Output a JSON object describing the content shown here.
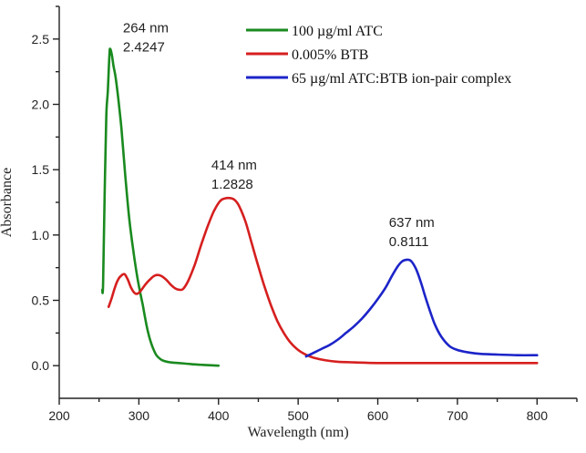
{
  "chart_data": {
    "type": "line",
    "title": "",
    "xlabel": "Wavelength (nm)",
    "ylabel": "Absorbance",
    "xlim": [
      200,
      850
    ],
    "ylim": [
      -0.25,
      2.75
    ],
    "x_ticks": [
      200,
      300,
      400,
      500,
      600,
      700,
      800
    ],
    "x_tick_labels": [
      "200",
      "300",
      "400",
      "500",
      "600",
      "700",
      "800"
    ],
    "x_minor_step": 50,
    "y_ticks": [
      0.0,
      0.5,
      1.0,
      1.5,
      2.0,
      2.5
    ],
    "y_tick_labels": [
      "0.0",
      "0.5",
      "1.0",
      "1.5",
      "2.0",
      "2.5"
    ],
    "y_minor_step": 0.25,
    "grid": false,
    "legend_position": "top-right",
    "series": [
      {
        "name": "100 µg/ml ATC",
        "color": "#1a8a1f",
        "x": [
          254,
          255,
          257,
          259,
          261,
          263,
          264,
          266,
          268,
          271,
          274,
          278,
          283,
          288,
          293,
          298,
          302,
          305,
          308,
          311,
          314,
          318,
          322,
          327,
          332,
          340,
          350,
          365,
          380,
          400
        ],
        "y": [
          0.58,
          0.62,
          1.3,
          1.9,
          2.1,
          2.38,
          2.4247,
          2.38,
          2.3,
          2.2,
          2.05,
          1.82,
          1.45,
          1.12,
          0.88,
          0.68,
          0.55,
          0.46,
          0.36,
          0.27,
          0.2,
          0.13,
          0.08,
          0.05,
          0.035,
          0.025,
          0.02,
          0.012,
          0.006,
          0.0
        ]
      },
      {
        "name": "0.005% BTB",
        "color": "#d61f1f",
        "x": [
          262,
          266,
          270,
          274,
          278,
          282,
          286,
          290,
          294,
          298,
          302,
          308,
          314,
          320,
          327,
          334,
          340,
          346,
          352,
          356,
          362,
          370,
          378,
          386,
          394,
          402,
          408,
          414,
          420,
          426,
          434,
          442,
          450,
          458,
          466,
          474,
          482,
          490,
          500,
          511,
          520,
          535,
          550,
          570,
          600,
          650,
          700,
          750,
          800
        ],
        "y": [
          0.45,
          0.52,
          0.6,
          0.66,
          0.69,
          0.7,
          0.66,
          0.6,
          0.56,
          0.55,
          0.57,
          0.62,
          0.66,
          0.69,
          0.69,
          0.66,
          0.62,
          0.59,
          0.58,
          0.59,
          0.65,
          0.77,
          0.92,
          1.06,
          1.18,
          1.26,
          1.28,
          1.2828,
          1.27,
          1.22,
          1.1,
          0.93,
          0.76,
          0.6,
          0.46,
          0.34,
          0.25,
          0.18,
          0.12,
          0.08,
          0.06,
          0.04,
          0.03,
          0.025,
          0.02,
          0.02,
          0.02,
          0.02,
          0.02
        ]
      },
      {
        "name": "65 µg/ml ATC:BTB ion-pair complex",
        "color": "#1c24c8",
        "x": [
          510,
          520,
          530,
          540,
          550,
          560,
          570,
          580,
          590,
          600,
          610,
          618,
          625,
          631,
          637,
          642,
          648,
          654,
          660,
          666,
          672,
          680,
          690,
          700,
          715,
          730,
          750,
          775,
          800
        ],
        "y": [
          0.07,
          0.1,
          0.13,
          0.16,
          0.2,
          0.25,
          0.3,
          0.36,
          0.43,
          0.51,
          0.6,
          0.69,
          0.76,
          0.8,
          0.8111,
          0.8,
          0.74,
          0.64,
          0.52,
          0.41,
          0.31,
          0.22,
          0.15,
          0.12,
          0.1,
          0.09,
          0.085,
          0.08,
          0.08
        ]
      }
    ],
    "annotations": [
      {
        "line1": "264 nm",
        "line2": "2.4247",
        "x": 264,
        "y": 2.4247,
        "anchor_x": 280,
        "anchor_y": 2.55
      },
      {
        "line1": "414 nm",
        "line2": "1.2828",
        "x": 414,
        "y": 1.2828,
        "anchor_x": 391,
        "anchor_y": 1.5
      },
      {
        "line1": "637 nm",
        "line2": "0.8111",
        "x": 637,
        "y": 0.8111,
        "anchor_x": 614,
        "anchor_y": 1.06
      }
    ]
  }
}
